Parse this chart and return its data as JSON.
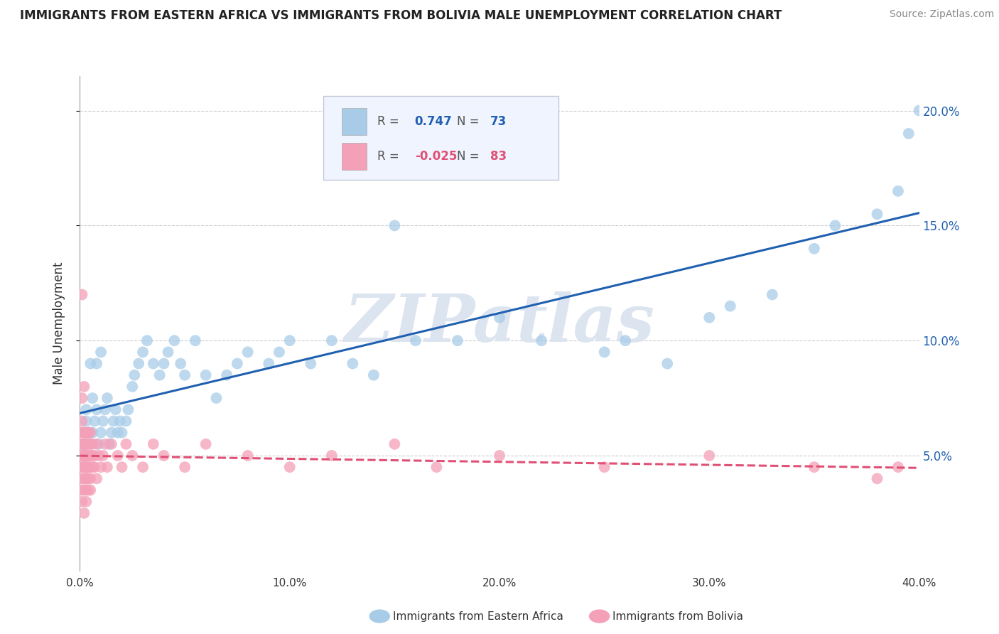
{
  "title": "IMMIGRANTS FROM EASTERN AFRICA VS IMMIGRANTS FROM BOLIVIA MALE UNEMPLOYMENT CORRELATION CHART",
  "source": "Source: ZipAtlas.com",
  "ylabel": "Male Unemployment",
  "watermark": "ZIPatlas",
  "series": [
    {
      "name": "Immigrants from Eastern Africa",
      "R": 0.747,
      "N": 73,
      "color": "#a8cce8",
      "edge_color": "none",
      "line_color": "#2060b0",
      "line_style": "solid",
      "x": [
        0.001,
        0.002,
        0.002,
        0.003,
        0.003,
        0.004,
        0.005,
        0.006,
        0.007,
        0.008,
        0.009,
        0.01,
        0.011,
        0.012,
        0.013,
        0.014,
        0.015,
        0.016,
        0.017,
        0.018,
        0.019,
        0.02,
        0.022,
        0.023,
        0.025,
        0.026,
        0.028,
        0.03,
        0.032,
        0.035,
        0.038,
        0.04,
        0.042,
        0.045,
        0.048,
        0.05,
        0.055,
        0.06,
        0.065,
        0.07,
        0.075,
        0.08,
        0.09,
        0.095,
        0.1,
        0.11,
        0.12,
        0.13,
        0.14,
        0.15,
        0.16,
        0.18,
        0.2,
        0.22,
        0.25,
        0.26,
        0.28,
        0.3,
        0.31,
        0.33,
        0.35,
        0.36,
        0.38,
        0.39,
        0.395,
        0.4,
        0.002,
        0.003,
        0.004,
        0.005,
        0.006,
        0.008,
        0.01
      ],
      "y": [
        0.055,
        0.055,
        0.06,
        0.055,
        0.065,
        0.06,
        0.055,
        0.06,
        0.065,
        0.07,
        0.055,
        0.06,
        0.065,
        0.07,
        0.075,
        0.055,
        0.06,
        0.065,
        0.07,
        0.06,
        0.065,
        0.06,
        0.065,
        0.07,
        0.08,
        0.085,
        0.09,
        0.095,
        0.1,
        0.09,
        0.085,
        0.09,
        0.095,
        0.1,
        0.09,
        0.085,
        0.1,
        0.085,
        0.075,
        0.085,
        0.09,
        0.095,
        0.09,
        0.095,
        0.1,
        0.09,
        0.1,
        0.09,
        0.085,
        0.15,
        0.1,
        0.1,
        0.11,
        0.1,
        0.095,
        0.1,
        0.09,
        0.11,
        0.115,
        0.12,
        0.14,
        0.15,
        0.155,
        0.165,
        0.19,
        0.2,
        0.055,
        0.07,
        0.06,
        0.09,
        0.075,
        0.09,
        0.095
      ]
    },
    {
      "name": "Immigrants from Bolivia",
      "R": -0.025,
      "N": 83,
      "color": "#f4a0b8",
      "edge_color": "none",
      "line_color": "#e05075",
      "line_style": "dashed",
      "x": [
        0.001,
        0.001,
        0.001,
        0.001,
        0.001,
        0.001,
        0.001,
        0.001,
        0.001,
        0.001,
        0.002,
        0.002,
        0.002,
        0.002,
        0.002,
        0.002,
        0.002,
        0.002,
        0.002,
        0.002,
        0.003,
        0.003,
        0.003,
        0.003,
        0.003,
        0.003,
        0.003,
        0.003,
        0.003,
        0.003,
        0.004,
        0.004,
        0.004,
        0.004,
        0.004,
        0.004,
        0.004,
        0.004,
        0.005,
        0.005,
        0.005,
        0.005,
        0.005,
        0.005,
        0.006,
        0.006,
        0.006,
        0.007,
        0.007,
        0.008,
        0.008,
        0.009,
        0.01,
        0.011,
        0.012,
        0.013,
        0.015,
        0.018,
        0.02,
        0.022,
        0.025,
        0.03,
        0.035,
        0.04,
        0.05,
        0.06,
        0.08,
        0.1,
        0.12,
        0.15,
        0.17,
        0.2,
        0.25,
        0.3,
        0.35,
        0.38,
        0.39,
        0.001,
        0.002,
        0.003,
        0.001,
        0.002,
        0.001
      ],
      "y": [
        0.05,
        0.055,
        0.06,
        0.04,
        0.045,
        0.05,
        0.055,
        0.035,
        0.045,
        0.065,
        0.045,
        0.05,
        0.055,
        0.06,
        0.04,
        0.045,
        0.05,
        0.055,
        0.035,
        0.06,
        0.045,
        0.05,
        0.055,
        0.04,
        0.045,
        0.05,
        0.055,
        0.035,
        0.06,
        0.04,
        0.045,
        0.05,
        0.055,
        0.04,
        0.045,
        0.05,
        0.035,
        0.06,
        0.045,
        0.05,
        0.055,
        0.04,
        0.035,
        0.06,
        0.045,
        0.05,
        0.055,
        0.045,
        0.05,
        0.04,
        0.055,
        0.05,
        0.045,
        0.05,
        0.055,
        0.045,
        0.055,
        0.05,
        0.045,
        0.055,
        0.05,
        0.045,
        0.055,
        0.05,
        0.045,
        0.055,
        0.05,
        0.045,
        0.05,
        0.055,
        0.045,
        0.05,
        0.045,
        0.05,
        0.045,
        0.04,
        0.045,
        0.03,
        0.025,
        0.03,
        0.12,
        0.08,
        0.075
      ]
    }
  ],
  "xlim": [
    0.0,
    0.4
  ],
  "ylim": [
    0.0,
    0.215
  ],
  "yticks": [
    0.05,
    0.1,
    0.15,
    0.2
  ],
  "ytick_labels": [
    "5.0%",
    "10.0%",
    "15.0%",
    "20.0%"
  ],
  "xticks": [
    0.0,
    0.1,
    0.2,
    0.3,
    0.4
  ],
  "xtick_labels": [
    "0.0%",
    "10.0%",
    "20.0%",
    "30.0%",
    "40.0%"
  ],
  "grid_color": "#cccccc",
  "background_color": "#ffffff",
  "watermark_color": "#dce4f0",
  "legend_box_color": "#f0f4ff",
  "legend_box_edge": "#c0c8d8",
  "title_fontsize": 12,
  "source_fontsize": 10
}
